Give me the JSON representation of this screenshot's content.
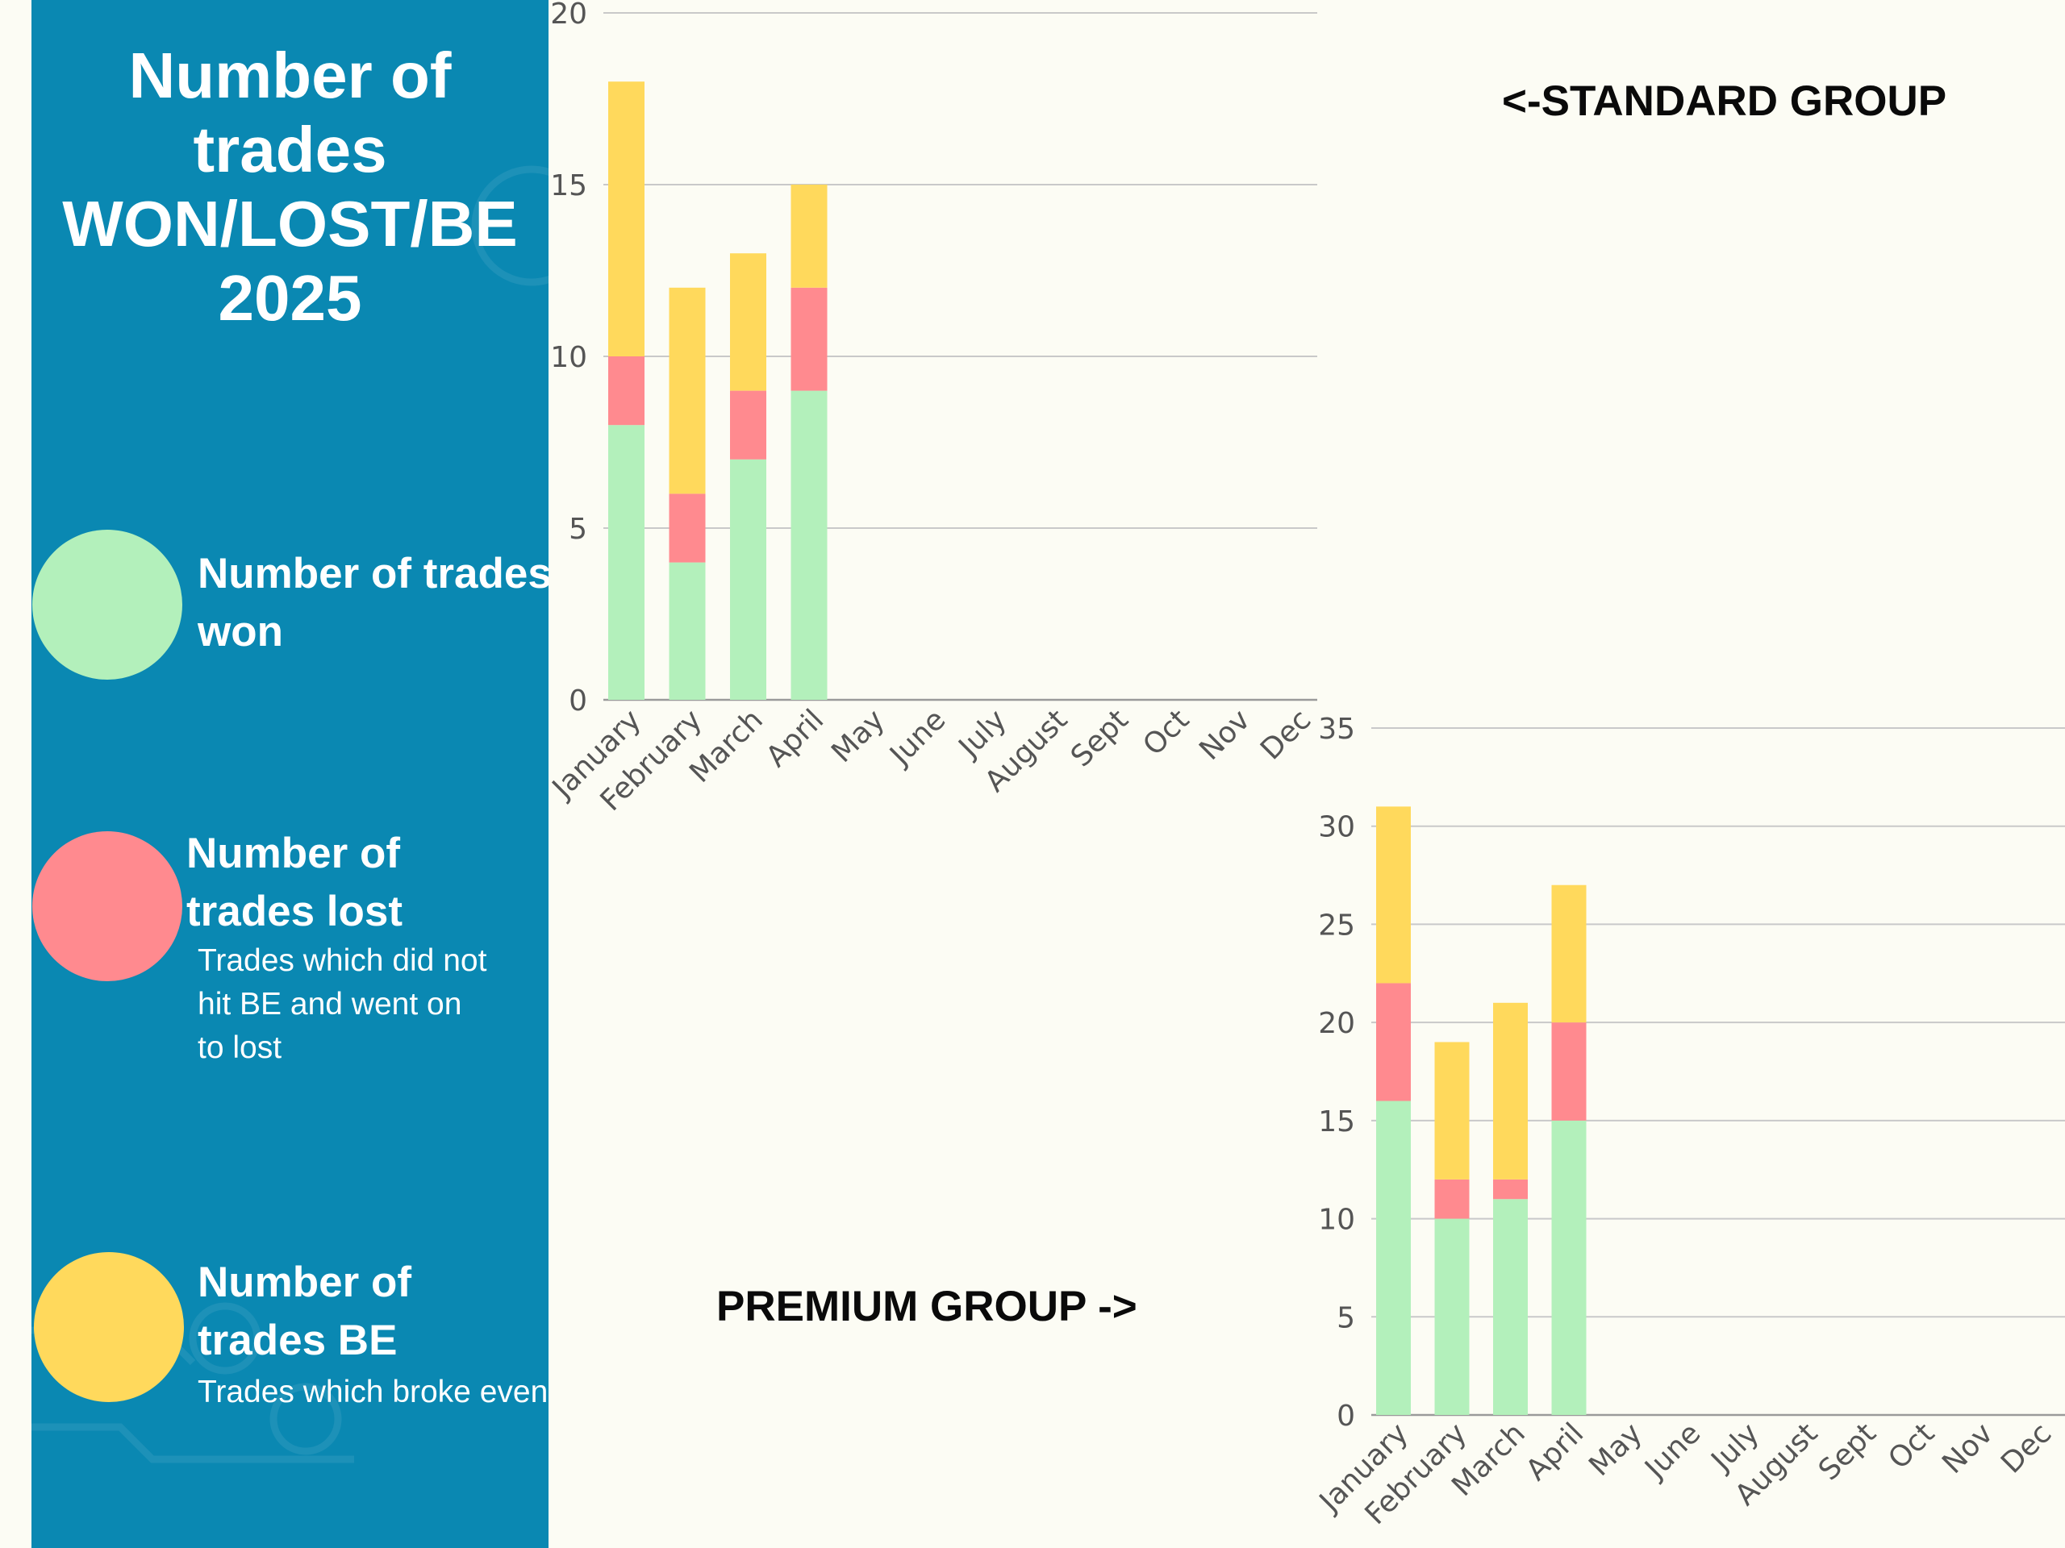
{
  "title": "Number of\ntrades\nWON/LOST/BE\n2025",
  "legend": [
    {
      "key": "won",
      "title": "Number of trades won",
      "subtitle": "",
      "color": "#b3f0bb"
    },
    {
      "key": "lost",
      "title": "Number of trades lost",
      "subtitle": "Trades which did not\n hit BE and went on\n to lost",
      "color": "#ff8a8f"
    },
    {
      "key": "be",
      "title": "Number of trades BE",
      "subtitle": "Trades which broke even",
      "color": "#ffd95c"
    }
  ],
  "labels": {
    "standard": "<-STANDARD GROUP",
    "premium": "PREMIUM GROUP ->"
  },
  "chart_data": [
    {
      "type": "bar",
      "stacked": true,
      "group": "standard",
      "categories": [
        "January",
        "February",
        "March",
        "April",
        "May",
        "June",
        "July",
        "August",
        "Sept",
        "Oct",
        "Nov",
        "Dec"
      ],
      "series": [
        {
          "name": "Number of trades won",
          "color": "#b3f0bb",
          "values": [
            8,
            4,
            7,
            9,
            null,
            null,
            null,
            null,
            null,
            null,
            null,
            null
          ]
        },
        {
          "name": "Number of trades lost",
          "color": "#ff8a8f",
          "values": [
            2,
            2,
            2,
            3,
            null,
            null,
            null,
            null,
            null,
            null,
            null,
            null
          ]
        },
        {
          "name": "Number of trades BE",
          "color": "#ffd95c",
          "values": [
            8,
            6,
            4,
            3,
            null,
            null,
            null,
            null,
            null,
            null,
            null,
            null
          ]
        }
      ],
      "ylim": [
        0,
        20
      ],
      "yticks": [
        0,
        5,
        10,
        15,
        20
      ],
      "grid": true,
      "xlabel": "",
      "ylabel": ""
    },
    {
      "type": "bar",
      "stacked": true,
      "group": "premium",
      "categories": [
        "January",
        "February",
        "March",
        "April",
        "May",
        "June",
        "July",
        "August",
        "Sept",
        "Oct",
        "Nov",
        "Dec"
      ],
      "series": [
        {
          "name": "Number of trades won",
          "color": "#b3f0bb",
          "values": [
            16,
            10,
            11,
            15,
            null,
            null,
            null,
            null,
            null,
            null,
            null,
            null
          ]
        },
        {
          "name": "Number of trades lost",
          "color": "#ff8a8f",
          "values": [
            6,
            2,
            1,
            5,
            null,
            null,
            null,
            null,
            null,
            null,
            null,
            null
          ]
        },
        {
          "name": "Number of trades BE",
          "color": "#ffd95c",
          "values": [
            9,
            7,
            9,
            7,
            null,
            null,
            null,
            null,
            null,
            null,
            null,
            null
          ]
        }
      ],
      "ylim": [
        0,
        35
      ],
      "yticks": [
        0,
        5,
        10,
        15,
        20,
        25,
        30,
        35
      ],
      "grid": true,
      "xlabel": "",
      "ylabel": ""
    }
  ]
}
